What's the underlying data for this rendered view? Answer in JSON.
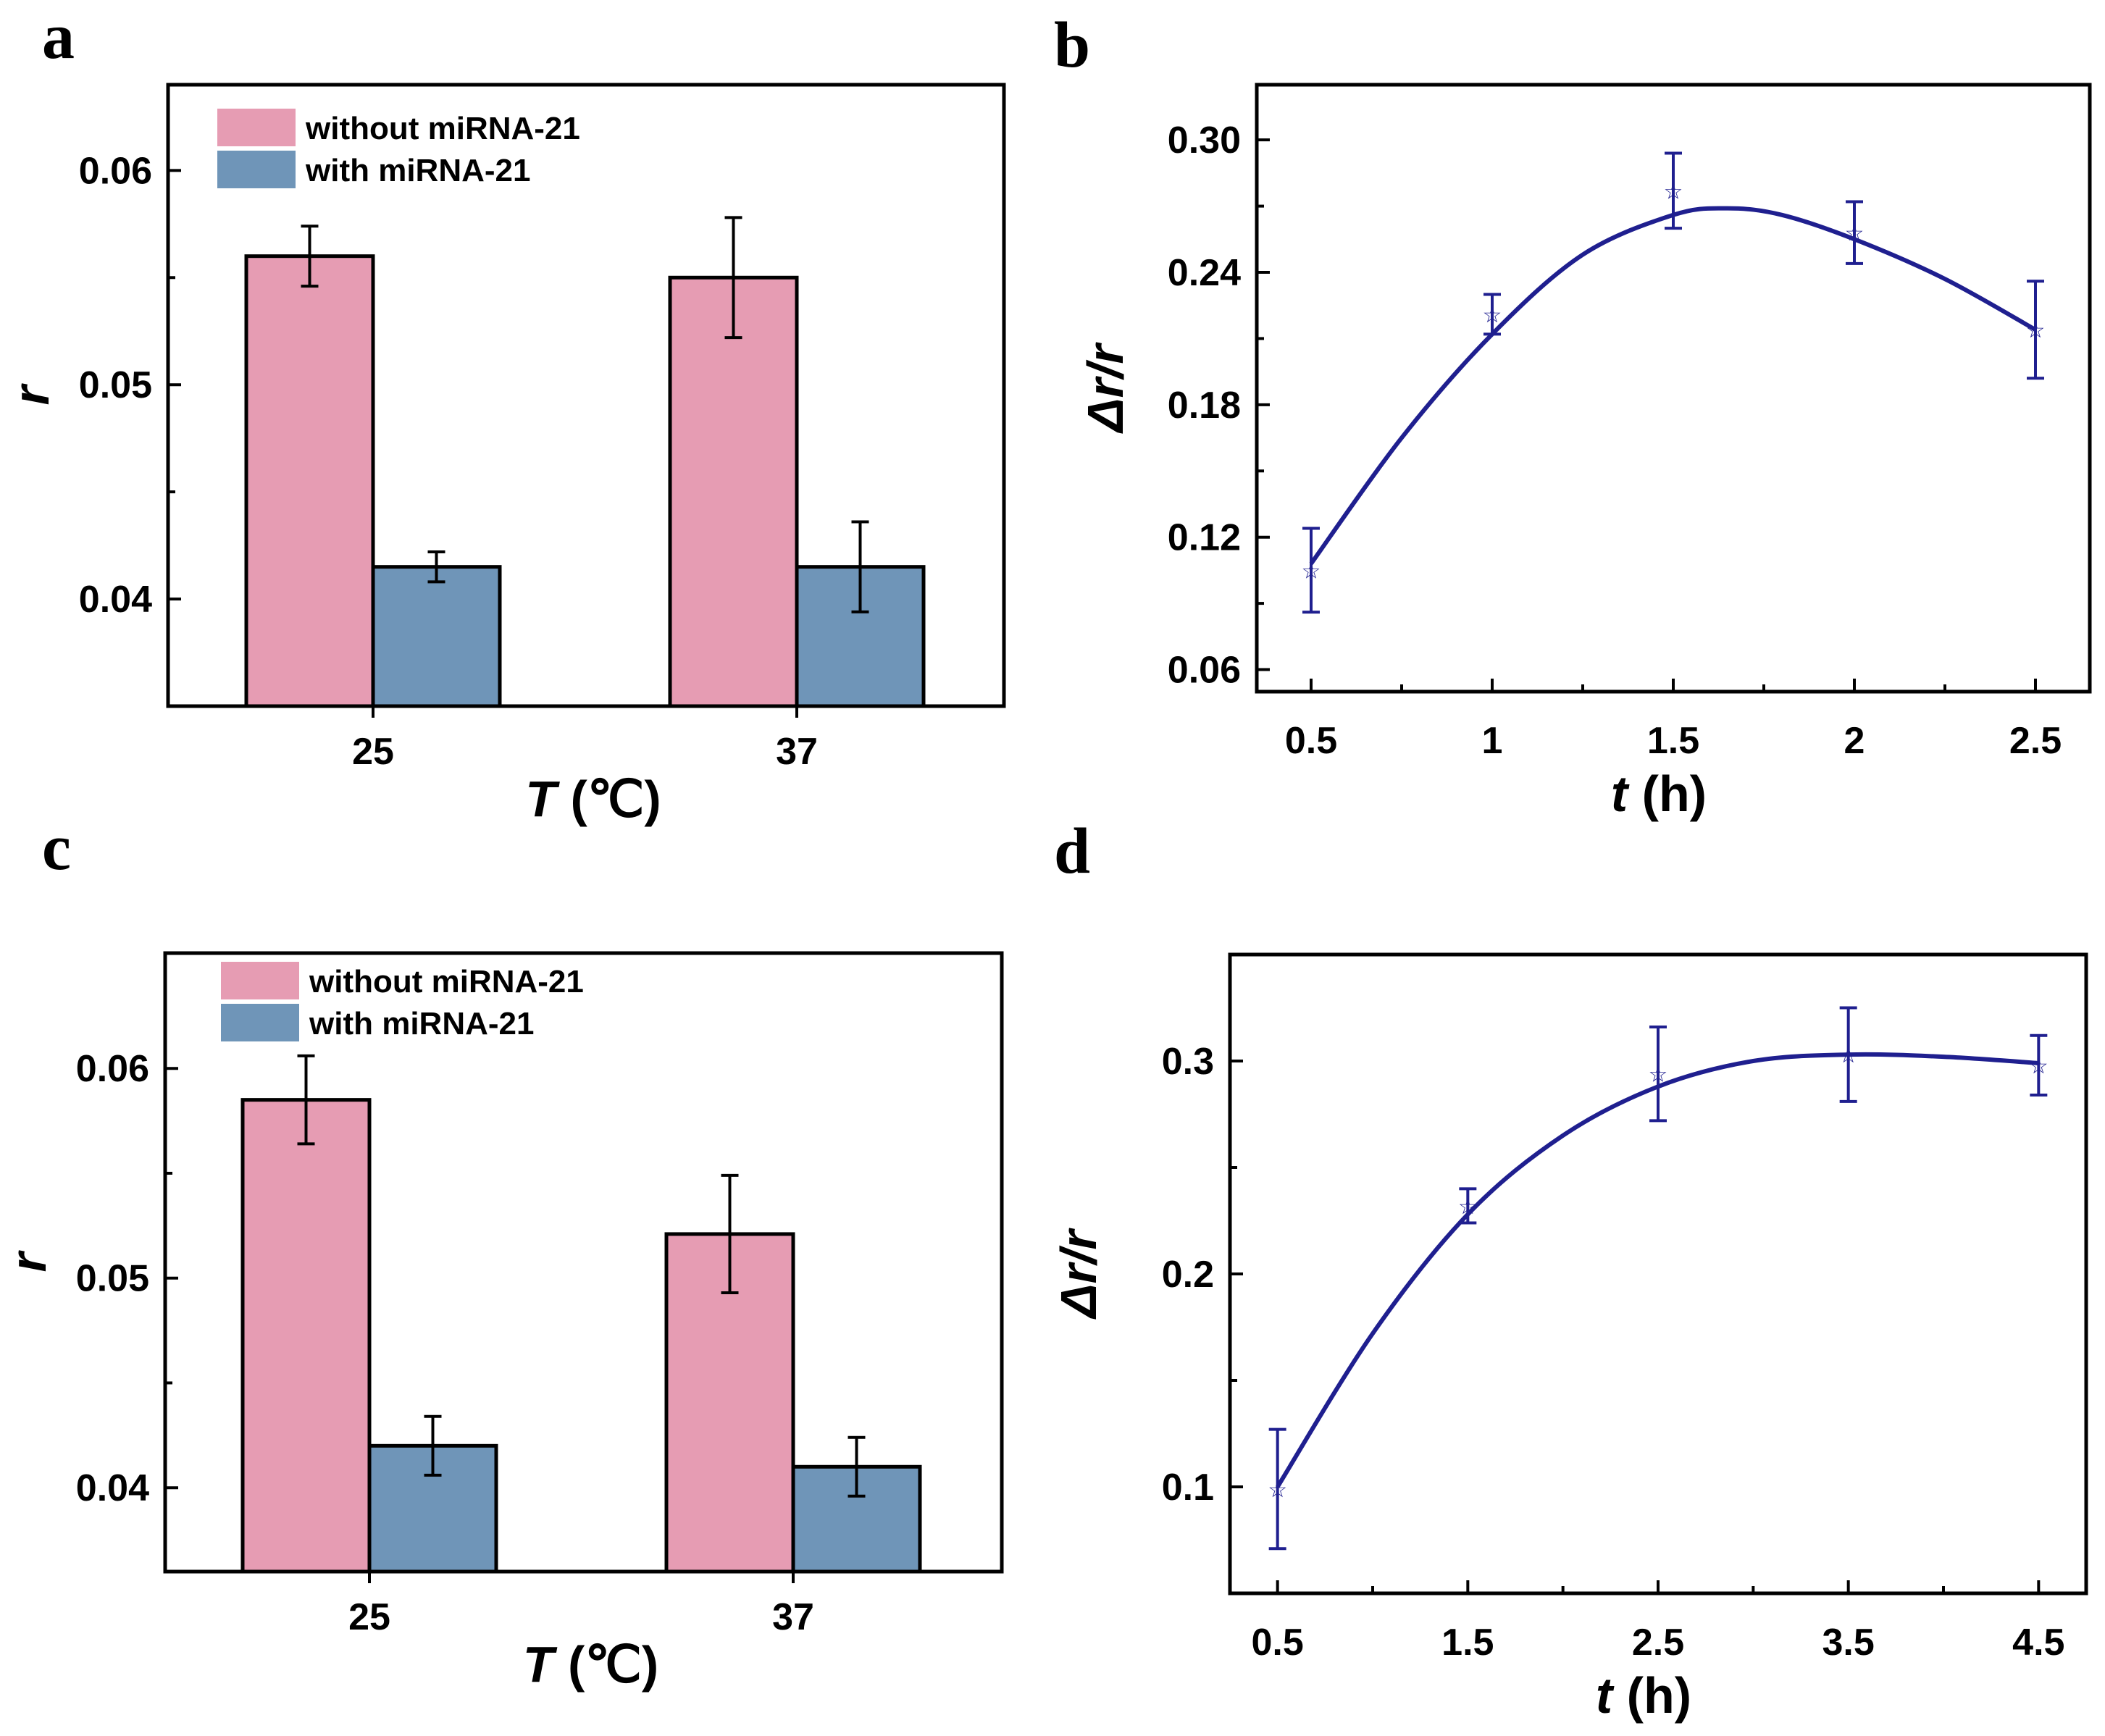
{
  "colors": {
    "series_without": "#e69cb3",
    "series_with": "#6f95b8",
    "curve": "#1f1f8f",
    "axis": "#000000"
  },
  "chart_data": [
    {
      "panel": "a",
      "type": "bar",
      "xlabel_symbol": "T",
      "xlabel_unit": " (℃)",
      "ylabel": "r",
      "categories": [
        "25",
        "37"
      ],
      "ylim": [
        0.035,
        0.064
      ],
      "yticks": [
        0.04,
        0.05,
        0.06
      ],
      "ytick_labels": [
        "0.04",
        "0.05",
        "0.06"
      ],
      "legend_position": "top-left",
      "series": [
        {
          "name": "without miRNA-21",
          "color": "#e69cb3",
          "values": [
            0.056,
            0.055
          ],
          "errors": [
            0.0014,
            0.0028
          ]
        },
        {
          "name": "with miRNA-21",
          "color": "#6f95b8",
          "values": [
            0.0415,
            0.0415
          ],
          "errors": [
            0.0007,
            0.0021
          ]
        }
      ]
    },
    {
      "panel": "b",
      "type": "line",
      "xlabel_symbol": "t",
      "xlabel_unit": " (h)",
      "ylabel": "Δr/r",
      "x": [
        0.5,
        1,
        1.5,
        2,
        2.5
      ],
      "xtick_labels": [
        "0.5",
        "1",
        "1.5",
        "2",
        "2.5"
      ],
      "y": [
        0.105,
        0.221,
        0.277,
        0.258,
        0.214
      ],
      "errors": [
        0.019,
        0.009,
        0.017,
        0.014,
        0.022
      ],
      "xlim": [
        0.35,
        2.65
      ],
      "ylim": [
        0.05,
        0.325
      ],
      "yticks": [
        0.06,
        0.12,
        0.18,
        0.24,
        0.3
      ],
      "ytick_labels": [
        "0.06",
        "0.12",
        "0.18",
        "0.24",
        "0.30"
      ],
      "fit": {
        "x": [
          0.5,
          0.75,
          1,
          1.25,
          1.5,
          1.65,
          1.8,
          2,
          2.25,
          2.5
        ],
        "y": [
          0.108,
          0.165,
          0.212,
          0.248,
          0.266,
          0.269,
          0.266,
          0.255,
          0.237,
          0.214
        ]
      }
    },
    {
      "panel": "c",
      "type": "bar",
      "xlabel_symbol": "T",
      "xlabel_unit": " (℃)",
      "ylabel": "r",
      "categories": [
        "25",
        "37"
      ],
      "ylim": [
        0.036,
        0.0655
      ],
      "yticks": [
        0.04,
        0.05,
        0.06
      ],
      "ytick_labels": [
        "0.04",
        "0.05",
        "0.06"
      ],
      "legend_position": "top-left",
      "series": [
        {
          "name": "without miRNA-21",
          "color": "#e69cb3",
          "values": [
            0.0585,
            0.0521
          ],
          "errors": [
            0.0021,
            0.0028
          ]
        },
        {
          "name": "with miRNA-21",
          "color": "#6f95b8",
          "values": [
            0.042,
            0.041
          ],
          "errors": [
            0.0014,
            0.0014
          ]
        }
      ]
    },
    {
      "panel": "d",
      "type": "line",
      "xlabel_symbol": "t",
      "xlabel_unit": " (h)",
      "ylabel": "Δr/r",
      "x": [
        0.5,
        1.5,
        2.5,
        3.5,
        4.5
      ],
      "xtick_labels": [
        "0.5",
        "1.5",
        "2.5",
        "3.5",
        "4.5"
      ],
      "y": [
        0.099,
        0.232,
        0.294,
        0.303,
        0.298
      ],
      "errors": [
        0.028,
        0.008,
        0.022,
        0.022,
        0.014
      ],
      "xlim": [
        0.25,
        4.75
      ],
      "ylim": [
        0.05,
        0.35
      ],
      "yticks": [
        0.1,
        0.2,
        0.3
      ],
      "ytick_labels": [
        "0.1",
        "0.2",
        "0.3"
      ],
      "fit": {
        "x": [
          0.5,
          1,
          1.5,
          2,
          2.5,
          3,
          3.5,
          4,
          4.5
        ],
        "y": [
          0.1,
          0.172,
          0.228,
          0.265,
          0.288,
          0.3,
          0.303,
          0.302,
          0.299
        ]
      }
    }
  ]
}
